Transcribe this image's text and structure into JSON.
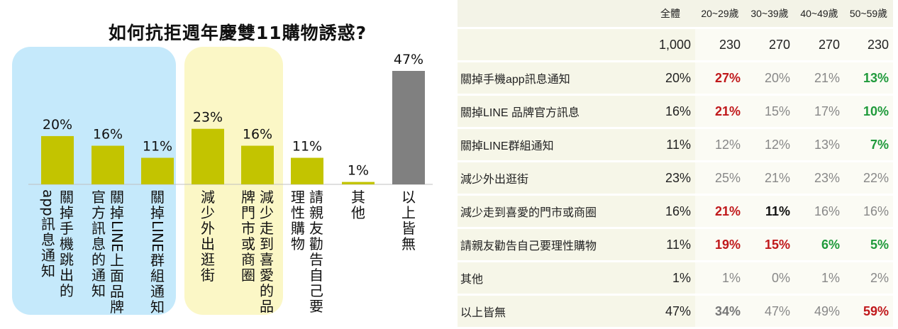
{
  "title": "如何抗拒週年慶雙11購物誘惑?",
  "colors": {
    "panel_blue": "#c5e9fb",
    "panel_yellow": "#fbf7c6",
    "bar_green": "#c3c400",
    "bar_gray": "#808080",
    "red_highlight": "#c0181b",
    "green_highlight": "#1f9a3b"
  },
  "chart_data": {
    "type": "bar",
    "title": "如何抗拒週年慶雙11購物誘惑?",
    "categories": [
      "關掉手機跳出的app訊息通知",
      "關掉LINE上面品牌官方訊息的通知",
      "關掉LINE群組通知",
      "減少外出逛街",
      "減少走到喜愛的品牌門市或商圈",
      "請親友勸告自己要理性購物",
      "其他",
      "以上皆無"
    ],
    "label_columns": [
      [
        "關掉手機跳出的",
        "app訊息通知"
      ],
      [
        "關掉LINE上面品牌",
        "官方訊息的通知"
      ],
      [
        "關掉LINE群組通知"
      ],
      [
        "減少外出逛街"
      ],
      [
        "減少走到喜愛的品",
        "牌門市或商圈"
      ],
      [
        "請親友勸告自己要",
        "理性購物"
      ],
      [
        "其他"
      ],
      [
        "以上皆無"
      ]
    ],
    "values": [
      20,
      16,
      11,
      23,
      16,
      11,
      1,
      47
    ],
    "value_labels": [
      "20%",
      "16%",
      "11%",
      "23%",
      "16%",
      "11%",
      "1%",
      "47%"
    ],
    "highlight": [
      "green",
      "green",
      "green",
      "green",
      "green",
      "green",
      "green",
      "gray"
    ],
    "groups": [
      "app/LINE notification group",
      "shopping-outing group"
    ],
    "ylim": [
      0,
      50
    ],
    "grid": false
  },
  "table": {
    "headers": [
      "",
      "全體",
      "20~29歲",
      "30~39歲",
      "40~49歲",
      "50~59歲"
    ],
    "totals": [
      "",
      "1,000",
      "230",
      "270",
      "270",
      "230"
    ],
    "rows": [
      {
        "label": "關掉手機app訊息通知",
        "values": [
          "20%",
          "27%",
          "20%",
          "21%",
          "13%"
        ],
        "styles": [
          "",
          "red",
          "",
          "",
          "green"
        ]
      },
      {
        "label": "關掉LINE 品牌官方訊息",
        "values": [
          "16%",
          "21%",
          "15%",
          "17%",
          "10%"
        ],
        "styles": [
          "",
          "red",
          "",
          "",
          "green"
        ]
      },
      {
        "label": "關掉LINE群組通知",
        "values": [
          "11%",
          "12%",
          "12%",
          "13%",
          "7%"
        ],
        "styles": [
          "",
          "",
          "",
          "",
          "green"
        ]
      },
      {
        "label": "減少外出逛街",
        "values": [
          "23%",
          "25%",
          "21%",
          "23%",
          "22%"
        ],
        "styles": [
          "",
          "",
          "",
          "",
          ""
        ]
      },
      {
        "label": "減少走到喜愛的門市或商圈",
        "values": [
          "16%",
          "21%",
          "11%",
          "16%",
          "16%"
        ],
        "styles": [
          "",
          "red",
          "black",
          "",
          ""
        ]
      },
      {
        "label": "請親友勸告自己要理性購物",
        "values": [
          "11%",
          "19%",
          "15%",
          "6%",
          "5%"
        ],
        "styles": [
          "",
          "red",
          "red",
          "green",
          "green"
        ]
      },
      {
        "label": "其他",
        "values": [
          "1%",
          "1%",
          "0%",
          "1%",
          "2%"
        ],
        "styles": [
          "",
          "",
          "",
          "",
          ""
        ]
      },
      {
        "label": "以上皆無",
        "values": [
          "47%",
          "34%",
          "47%",
          "49%",
          "59%"
        ],
        "styles": [
          "",
          "gray-bold",
          "",
          "",
          "red"
        ]
      }
    ]
  }
}
